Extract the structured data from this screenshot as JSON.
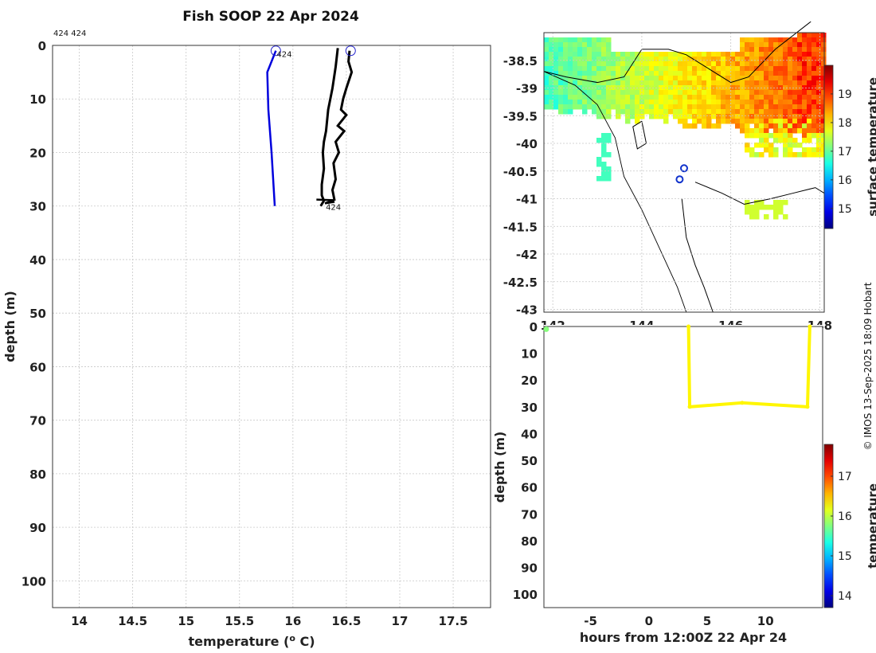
{
  "title": "Fish SOOP 22 Apr 2024",
  "top_note": "424 424",
  "credit": "© IMOS 13-Sep-2025 18:09 Hobart",
  "chart_data": [
    {
      "id": "profile",
      "type": "line",
      "xlabel": "temperature (",
      "xlabel_sup": "o",
      "xlabel_tail": " C)",
      "ylabel": "depth (m)",
      "xlim": [
        13.75,
        17.85
      ],
      "ylim": [
        0,
        105
      ],
      "xticks": [
        14,
        14.5,
        15,
        15.5,
        16,
        16.5,
        17,
        17.5
      ],
      "xtick_labels": [
        "14",
        "14.5",
        "15",
        "15.5",
        "16",
        "16.5",
        "17",
        "17.5"
      ],
      "yticks": [
        0,
        10,
        20,
        30,
        40,
        50,
        60,
        70,
        80,
        90,
        100
      ],
      "ytick_labels": [
        "0",
        "10",
        "20",
        "30",
        "40",
        "50",
        "60",
        "70",
        "80",
        "90",
        "100"
      ],
      "series": [
        {
          "name": "blue",
          "color": "#0000dd",
          "x": [
            15.84,
            15.76,
            15.77,
            15.8,
            15.83
          ],
          "y": [
            1,
            5,
            12,
            20,
            30
          ]
        },
        {
          "name": "black-left",
          "color": "#000000",
          "x": [
            16.42,
            16.4,
            16.37,
            16.33,
            16.31,
            16.29,
            16.28,
            16.29,
            16.27,
            16.27,
            16.29,
            16.26
          ],
          "y": [
            0.5,
            4,
            8,
            12,
            16,
            18,
            20,
            23,
            26,
            28,
            29,
            30
          ]
        },
        {
          "name": "black-right",
          "color": "#000000",
          "x": [
            16.53,
            16.52,
            16.55,
            16.5,
            16.47,
            16.45,
            16.5,
            16.42,
            16.48,
            16.4,
            16.43,
            16.38,
            16.4,
            16.37,
            16.39
          ],
          "y": [
            1,
            3,
            5,
            8,
            10,
            12,
            13,
            15,
            16,
            18,
            20,
            22,
            25,
            27,
            29
          ]
        }
      ],
      "markers": [
        {
          "x": 15.84,
          "y": 1,
          "label": "424"
        },
        {
          "x": 16.54,
          "y": 1,
          "label": ""
        }
      ],
      "end_label": {
        "x": 16.3,
        "y": 30,
        "label": "424"
      }
    },
    {
      "id": "map",
      "type": "heatmap",
      "xlim": [
        141.8,
        148.1
      ],
      "ylim": [
        -43.05,
        -38.0
      ],
      "xticks": [
        142,
        144,
        146,
        148
      ],
      "xtick_labels": [
        "142",
        "144",
        "146",
        "148"
      ],
      "yticks": [
        -38.5,
        -39,
        -39.5,
        -40,
        -40.5,
        -41,
        -41.5,
        -42,
        -42.5,
        -43
      ],
      "ytick_labels": [
        "-38.5",
        "-39",
        "-39.5",
        "-40",
        "-40.5",
        "-41",
        "-41.5",
        "-42",
        "-42.5",
        "-43"
      ],
      "colorbar_label": "surface temperature",
      "colorbar_range": [
        14.3,
        20.0
      ],
      "colorbar_ticks": [
        15,
        16,
        17,
        18,
        19
      ],
      "colorbar_tick_labels": [
        "15",
        "16",
        "17",
        "18",
        "19"
      ]
    },
    {
      "id": "timeseries",
      "type": "scatter",
      "xlabel": "hours from 12:00Z 22 Apr 24",
      "ylabel": "depth (m)",
      "xlim": [
        -9,
        14.9
      ],
      "ylim": [
        0,
        105
      ],
      "xticks": [
        -5,
        0,
        5,
        10
      ],
      "xtick_labels": [
        "-5",
        "0",
        "5",
        "10"
      ],
      "yticks": [
        0,
        10,
        20,
        30,
        40,
        50,
        60,
        70,
        80,
        90,
        100
      ],
      "ytick_labels": [
        "0",
        "10",
        "20",
        "30",
        "40",
        "50",
        "60",
        "70",
        "80",
        "90",
        "100"
      ],
      "colorbar_label": "temperature",
      "colorbar_range": [
        13.7,
        17.8
      ],
      "colorbar_ticks": [
        14,
        15,
        16,
        17
      ],
      "colorbar_tick_labels": [
        "14",
        "15",
        "16",
        "17"
      ],
      "points": [
        {
          "x": -8.8,
          "y": 1,
          "t": 16.1
        },
        {
          "x": 3.4,
          "y": 0,
          "t": 16.3
        },
        {
          "x": 3.5,
          "y": 30,
          "t": 16.3
        },
        {
          "x": 8.0,
          "y": 28.5,
          "t": 16.3
        },
        {
          "x": 13.6,
          "y": 30,
          "t": 16.3
        },
        {
          "x": 13.8,
          "y": 0,
          "t": 16.3
        }
      ]
    }
  ]
}
